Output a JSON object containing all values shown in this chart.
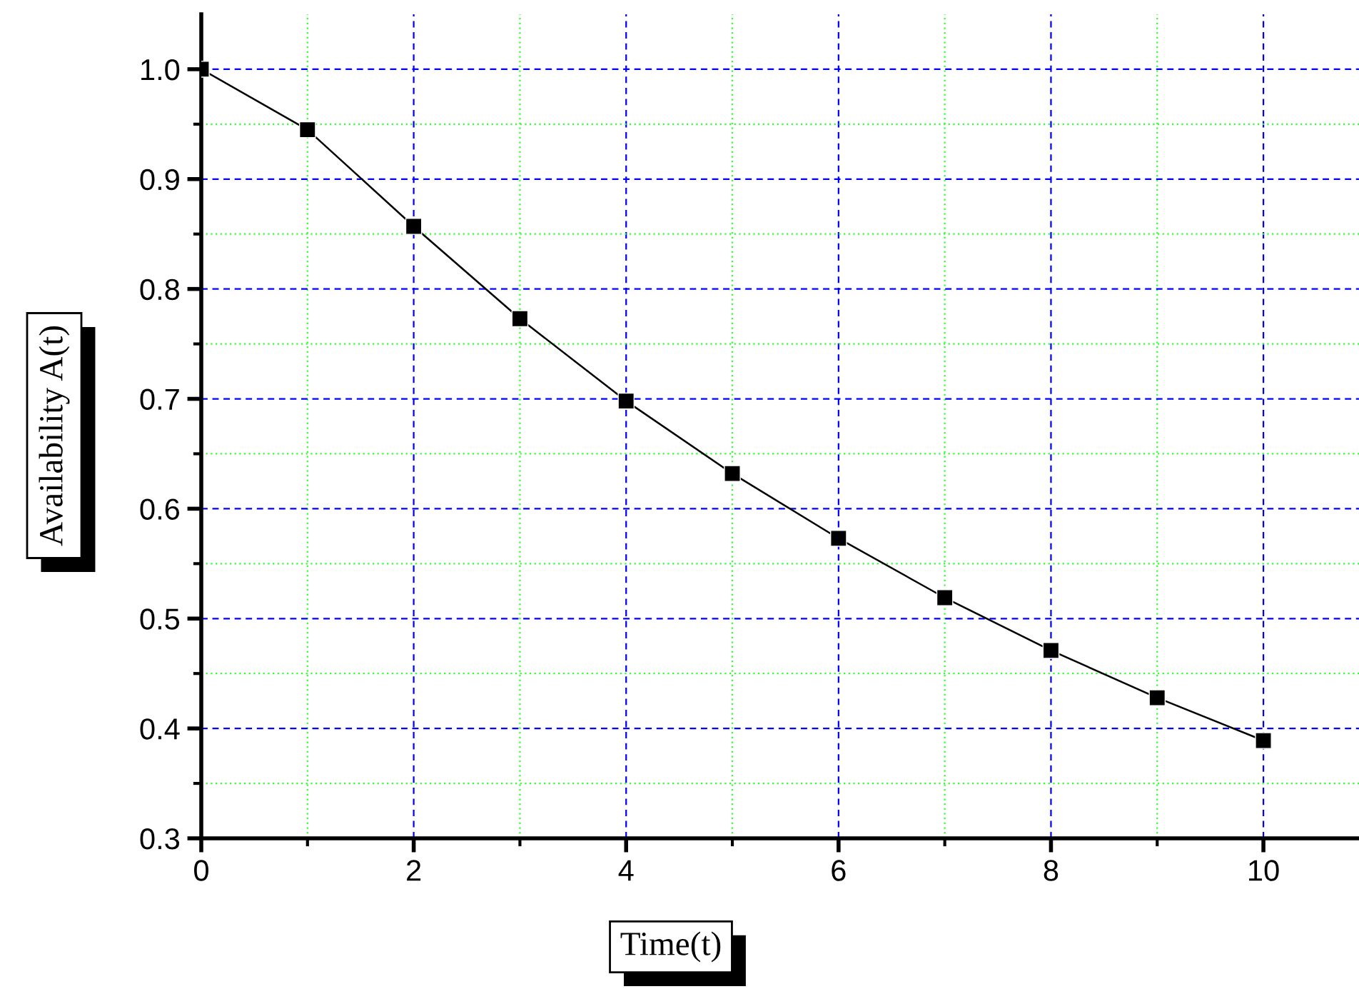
{
  "chart_data": {
    "type": "line",
    "xlabel": "Time(t)",
    "ylabel": "Availability A(t)",
    "x": [
      0,
      1,
      2,
      3,
      4,
      5,
      6,
      7,
      8,
      9,
      10
    ],
    "series": [
      {
        "color": "#000000",
        "values": [
          1.0,
          0.945,
          0.857,
          0.773,
          0.698,
          0.632,
          0.573,
          0.519,
          0.471,
          0.428,
          0.389
        ]
      }
    ],
    "xlim": [
      0,
      10.9
    ],
    "xticks": [
      0,
      {
        "value": 1,
        "label": null
      },
      2,
      {
        "value": 3,
        "label": null
      },
      4,
      {
        "value": 5,
        "label": null
      },
      6,
      {
        "value": 7,
        "label": null
      },
      8,
      {
        "value": 9,
        "label": null
      },
      10
    ],
    "ylim": [
      0.3,
      1.05
    ],
    "yticks": [
      0.3,
      {
        "value": 0.35,
        "label": null
      },
      0.4,
      {
        "value": 0.45,
        "label": null
      },
      0.5,
      {
        "value": 0.55,
        "label": null
      },
      0.6,
      {
        "value": 0.65,
        "label": null
      },
      0.7,
      {
        "value": 0.75,
        "label": null
      },
      0.8,
      {
        "value": 0.85,
        "label": null
      },
      0.9,
      {
        "value": 0.95,
        "label": null
      },
      {
        "value": 1,
        "label": "1.0"
      }
    ],
    "grid": true,
    "marker": "square",
    "line_style": "solid"
  }
}
